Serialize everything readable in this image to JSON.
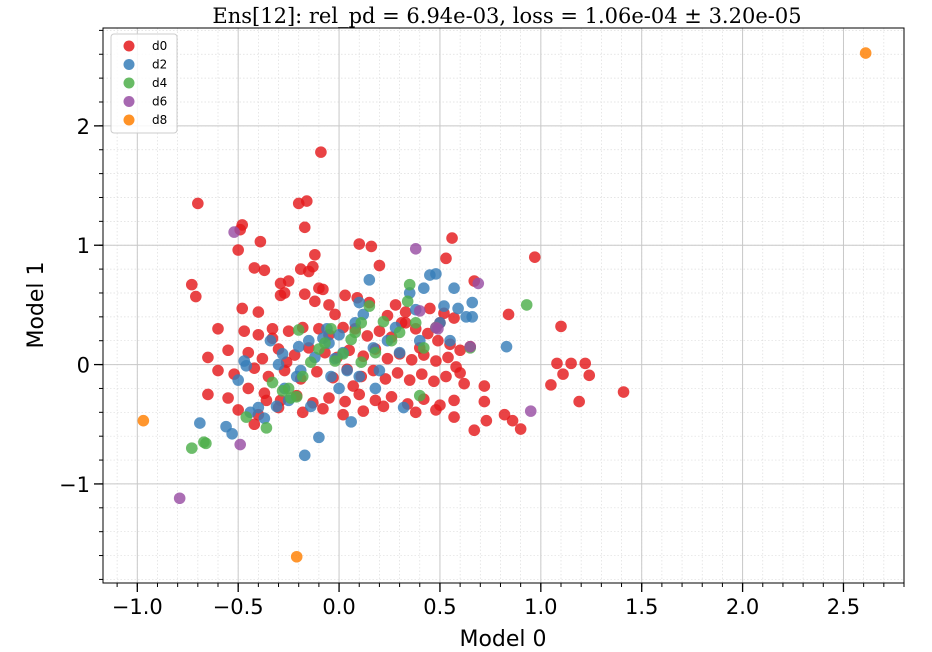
{
  "chart_data": {
    "type": "scatter",
    "title": "Ens[12]: rel_pd = 6.94e-03, loss = 1.06e-04 ± 3.20e-05",
    "xlabel": "Model 0",
    "ylabel": "Model 1",
    "xlim": [
      -1.17,
      2.8
    ],
    "ylim": [
      -1.83,
      2.82
    ],
    "x_ticks": [
      -1.0,
      -0.5,
      0.0,
      0.5,
      1.0,
      1.5,
      2.0,
      2.5
    ],
    "x_tick_labels": [
      "−1.0",
      "−0.5",
      "0.0",
      "0.5",
      "1.0",
      "1.5",
      "2.0",
      "2.5"
    ],
    "y_ticks": [
      -1,
      0,
      1,
      2
    ],
    "y_tick_labels": [
      "−1",
      "0",
      "1",
      "2"
    ],
    "grid": true,
    "legend_position": "top-left",
    "series": [
      {
        "name": "d0",
        "color": "#e41a1c",
        "points": [
          [
            -0.7,
            1.35
          ],
          [
            -0.09,
            1.78
          ],
          [
            -0.2,
            1.35
          ],
          [
            -0.16,
            1.37
          ],
          [
            -0.17,
            1.15
          ],
          [
            -0.48,
            1.17
          ],
          [
            -0.49,
            1.13
          ],
          [
            -0.39,
            1.03
          ],
          [
            -0.5,
            0.96
          ],
          [
            -0.12,
            0.92
          ],
          [
            -0.73,
            0.67
          ],
          [
            -0.71,
            0.57
          ],
          [
            -0.42,
            0.81
          ],
          [
            -0.37,
            0.79
          ],
          [
            -0.29,
            0.68
          ],
          [
            -0.25,
            0.7
          ],
          [
            -0.19,
            0.8
          ],
          [
            -0.15,
            0.78
          ],
          [
            -0.13,
            0.82
          ],
          [
            0.1,
            1.01
          ],
          [
            0.16,
            0.99
          ],
          [
            0.2,
            0.83
          ],
          [
            0.53,
            0.89
          ],
          [
            0.67,
            0.7
          ],
          [
            0.56,
            1.06
          ],
          [
            0.97,
            0.9
          ],
          [
            1.1,
            0.32
          ],
          [
            0.84,
            0.42
          ],
          [
            -0.48,
            0.47
          ],
          [
            -0.4,
            0.44
          ],
          [
            -0.29,
            0.58
          ],
          [
            -0.27,
            0.6
          ],
          [
            -0.17,
            0.59
          ],
          [
            -0.1,
            0.64
          ],
          [
            -0.08,
            0.63
          ],
          [
            -0.12,
            0.53
          ],
          [
            -0.05,
            0.5
          ],
          [
            0.03,
            0.58
          ],
          [
            0.09,
            0.56
          ],
          [
            0.15,
            0.52
          ],
          [
            0.28,
            0.5
          ],
          [
            0.33,
            0.44
          ],
          [
            0.45,
            0.47
          ],
          [
            0.52,
            0.43
          ],
          [
            0.57,
            0.39
          ],
          [
            -0.6,
            0.3
          ],
          [
            -0.47,
            0.28
          ],
          [
            -0.4,
            0.25
          ],
          [
            -0.33,
            0.22
          ],
          [
            -0.25,
            0.28
          ],
          [
            -0.18,
            0.31
          ],
          [
            -0.1,
            0.3
          ],
          [
            -0.05,
            0.25
          ],
          [
            0.02,
            0.31
          ],
          [
            0.08,
            0.3
          ],
          [
            0.14,
            0.24
          ],
          [
            0.2,
            0.28
          ],
          [
            0.26,
            0.23
          ],
          [
            0.31,
            0.35
          ],
          [
            0.38,
            0.3
          ],
          [
            0.44,
            0.26
          ],
          [
            0.49,
            0.2
          ],
          [
            0.55,
            0.17
          ],
          [
            0.6,
            0.12
          ],
          [
            0.65,
            0.15
          ],
          [
            -0.55,
            0.12
          ],
          [
            -0.45,
            0.1
          ],
          [
            -0.38,
            0.05
          ],
          [
            -0.3,
            0.13
          ],
          [
            -0.22,
            0.08
          ],
          [
            -0.15,
            0.14
          ],
          [
            -0.07,
            0.1
          ],
          [
            -0.01,
            0.06
          ],
          [
            0.05,
            0.12
          ],
          [
            0.12,
            0.07
          ],
          [
            0.18,
            0.13
          ],
          [
            0.24,
            0.05
          ],
          [
            0.3,
            0.09
          ],
          [
            0.36,
            0.04
          ],
          [
            0.42,
            0.08
          ],
          [
            0.48,
            0.03
          ],
          [
            0.54,
            0.06
          ],
          [
            0.58,
            -0.02
          ],
          [
            -0.6,
            -0.05
          ],
          [
            -0.52,
            -0.08
          ],
          [
            -0.42,
            -0.03
          ],
          [
            -0.35,
            -0.1
          ],
          [
            -0.27,
            -0.05
          ],
          [
            -0.19,
            -0.12
          ],
          [
            -0.11,
            -0.06
          ],
          [
            -0.03,
            -0.11
          ],
          [
            0.04,
            -0.04
          ],
          [
            0.11,
            -0.1
          ],
          [
            0.17,
            -0.05
          ],
          [
            0.23,
            -0.12
          ],
          [
            0.29,
            -0.07
          ],
          [
            0.35,
            -0.13
          ],
          [
            0.41,
            -0.08
          ],
          [
            0.47,
            -0.14
          ],
          [
            0.53,
            -0.1
          ],
          [
            0.6,
            -0.07
          ],
          [
            0.62,
            -0.16
          ],
          [
            -0.65,
            -0.25
          ],
          [
            -0.55,
            -0.28
          ],
          [
            -0.45,
            -0.2
          ],
          [
            -0.37,
            -0.24
          ],
          [
            -0.29,
            -0.3
          ],
          [
            -0.21,
            -0.26
          ],
          [
            -0.13,
            -0.32
          ],
          [
            -0.05,
            -0.28
          ],
          [
            0.03,
            -0.31
          ],
          [
            0.1,
            -0.25
          ],
          [
            0.18,
            -0.3
          ],
          [
            0.26,
            -0.27
          ],
          [
            0.34,
            -0.33
          ],
          [
            0.42,
            -0.29
          ],
          [
            0.5,
            -0.34
          ],
          [
            0.57,
            -0.3
          ],
          [
            -0.5,
            -0.38
          ],
          [
            -0.4,
            -0.42
          ],
          [
            -0.3,
            -0.36
          ],
          [
            -0.18,
            -0.4
          ],
          [
            -0.08,
            -0.37
          ],
          [
            0.02,
            -0.42
          ],
          [
            0.12,
            -0.39
          ],
          [
            0.22,
            -0.35
          ],
          [
            0.38,
            -0.4
          ],
          [
            0.48,
            -0.38
          ],
          [
            0.57,
            -0.44
          ],
          [
            -0.42,
            -0.5
          ],
          [
            0.67,
            -0.55
          ],
          [
            0.73,
            -0.47
          ],
          [
            0.82,
            -0.42
          ],
          [
            0.86,
            -0.47
          ],
          [
            0.9,
            -0.54
          ],
          [
            0.72,
            -0.18
          ],
          [
            0.72,
            -0.31
          ],
          [
            1.05,
            -0.17
          ],
          [
            1.08,
            0.01
          ],
          [
            1.11,
            -0.08
          ],
          [
            1.15,
            0.01
          ],
          [
            1.19,
            -0.31
          ],
          [
            1.22,
            0.01
          ],
          [
            1.24,
            -0.09
          ],
          [
            1.41,
            -0.23
          ],
          [
            -0.65,
            0.06
          ],
          [
            0.33,
            0.35
          ],
          [
            0.5,
            0.35
          ],
          [
            -0.33,
            0.3
          ],
          [
            -0.02,
            0.42
          ],
          [
            0.24,
            0.41
          ],
          [
            0.4,
            0.14
          ],
          [
            -0.26,
            0.02
          ],
          [
            0.07,
            -0.18
          ],
          [
            -0.36,
            -0.3
          ]
        ]
      },
      {
        "name": "d2",
        "color": "#377eb8",
        "points": [
          [
            -0.69,
            -0.49
          ],
          [
            -0.56,
            -0.52
          ],
          [
            -0.53,
            -0.58
          ],
          [
            -0.5,
            -0.13
          ],
          [
            -0.47,
            0.03
          ],
          [
            -0.46,
            -0.01
          ],
          [
            -0.44,
            -0.4
          ],
          [
            -0.4,
            -0.36
          ],
          [
            -0.37,
            -0.45
          ],
          [
            -0.34,
            0.2
          ],
          [
            -0.31,
            -0.35
          ],
          [
            -0.28,
            0.09
          ],
          [
            -0.25,
            -0.3
          ],
          [
            -0.21,
            -0.1
          ],
          [
            -0.19,
            -0.05
          ],
          [
            -0.17,
            -0.76
          ],
          [
            -0.14,
            -0.35
          ],
          [
            -0.12,
            0.06
          ],
          [
            -0.1,
            -0.61
          ],
          [
            -0.08,
            0.22
          ],
          [
            -0.06,
            0.3
          ],
          [
            -0.04,
            -0.1
          ],
          [
            -0.02,
            0.05
          ],
          [
            0.0,
            -0.2
          ],
          [
            0.02,
            0.1
          ],
          [
            0.04,
            -0.05
          ],
          [
            0.06,
            -0.48
          ],
          [
            0.08,
            0.35
          ],
          [
            0.1,
            0.52
          ],
          [
            0.12,
            0.42
          ],
          [
            0.15,
            0.71
          ],
          [
            0.17,
            0.14
          ],
          [
            0.2,
            -0.05
          ],
          [
            0.24,
            0.2
          ],
          [
            0.28,
            0.31
          ],
          [
            0.3,
            0.1
          ],
          [
            0.32,
            -0.36
          ],
          [
            0.35,
            0.6
          ],
          [
            0.38,
            0.46
          ],
          [
            0.4,
            0.2
          ],
          [
            0.42,
            0.64
          ],
          [
            0.45,
            0.75
          ],
          [
            0.48,
            0.76
          ],
          [
            0.5,
            0.35
          ],
          [
            0.52,
            0.49
          ],
          [
            0.55,
            0.2
          ],
          [
            0.57,
            0.64
          ],
          [
            0.59,
            0.47
          ],
          [
            0.63,
            0.4
          ],
          [
            0.66,
            0.52
          ],
          [
            0.66,
            0.4
          ],
          [
            0.83,
            0.15
          ],
          [
            -0.15,
            0.2
          ],
          [
            -0.27,
            -0.2
          ],
          [
            -0.05,
            0.18
          ],
          [
            -0.3,
            0.0
          ],
          [
            0.18,
            -0.2
          ],
          [
            0.0,
            0.25
          ],
          [
            -0.2,
            0.15
          ],
          [
            0.1,
            -0.1
          ]
        ]
      },
      {
        "name": "d4",
        "color": "#4daf4a",
        "points": [
          [
            -0.73,
            -0.7
          ],
          [
            -0.67,
            -0.65
          ],
          [
            -0.66,
            -0.66
          ],
          [
            -0.46,
            -0.44
          ],
          [
            -0.36,
            -0.53
          ],
          [
            -0.33,
            -0.15
          ],
          [
            -0.28,
            -0.22
          ],
          [
            -0.25,
            -0.2
          ],
          [
            -0.21,
            -0.27
          ],
          [
            -0.2,
            0.29
          ],
          [
            -0.18,
            -0.1
          ],
          [
            -0.14,
            0.02
          ],
          [
            -0.1,
            0.13
          ],
          [
            -0.07,
            0.18
          ],
          [
            -0.04,
            0.3
          ],
          [
            -0.02,
            0.03
          ],
          [
            0.02,
            0.09
          ],
          [
            0.06,
            0.21
          ],
          [
            0.08,
            0.27
          ],
          [
            0.11,
            0.35
          ],
          [
            0.15,
            0.49
          ],
          [
            0.18,
            0.1
          ],
          [
            0.22,
            0.36
          ],
          [
            0.26,
            0.2
          ],
          [
            0.3,
            0.27
          ],
          [
            0.35,
            0.67
          ],
          [
            0.38,
            0.35
          ],
          [
            0.42,
            0.14
          ],
          [
            0.65,
            0.14
          ],
          [
            0.93,
            0.5
          ],
          [
            0.4,
            -0.26
          ],
          [
            -0.24,
            -0.28
          ],
          [
            0.11,
            0.02
          ],
          [
            0.34,
            0.53
          ],
          [
            0.48,
            0.31
          ]
        ]
      },
      {
        "name": "d6",
        "color": "#984ea3",
        "points": [
          [
            -0.52,
            1.11
          ],
          [
            -0.49,
            -0.67
          ],
          [
            -0.79,
            -1.12
          ],
          [
            0.38,
            0.97
          ],
          [
            0.48,
            0.31
          ],
          [
            0.65,
            0.15
          ],
          [
            0.69,
            0.68
          ],
          [
            0.95,
            -0.39
          ],
          [
            0.4,
            0.45
          ],
          [
            0.49,
            0.3
          ]
        ]
      },
      {
        "name": "d8",
        "color": "#ff7f00",
        "points": [
          [
            -0.97,
            -0.47
          ],
          [
            -0.21,
            -1.61
          ],
          [
            2.61,
            2.61
          ]
        ]
      }
    ]
  }
}
